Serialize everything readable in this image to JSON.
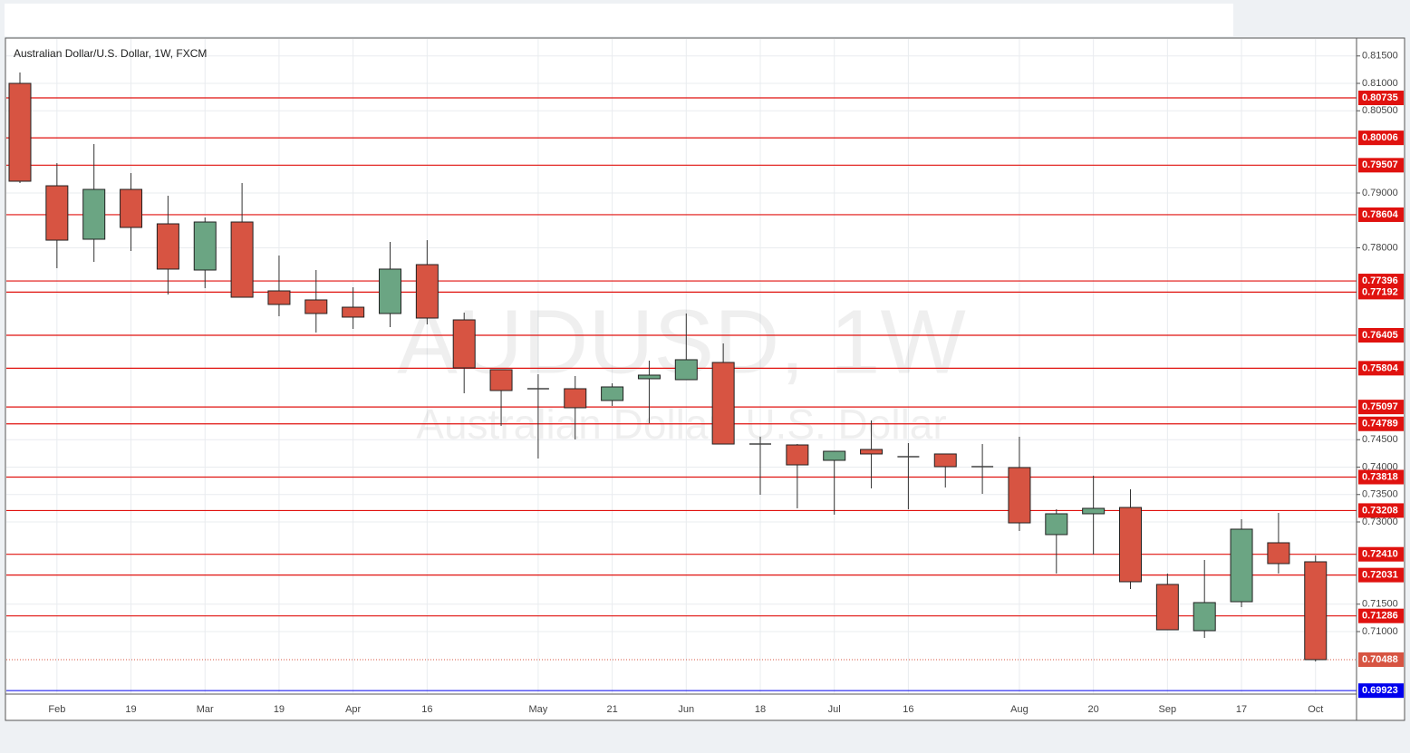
{
  "chart_data": {
    "type": "candlestick",
    "title": "Australian Dollar/U.S. Dollar, 1W, FXCM",
    "watermark_symbol": "AUDUSD, 1W",
    "watermark_name": "Australian Dollar/ U.S. Dollar",
    "categories": [
      null,
      "Feb",
      null,
      "19",
      null,
      "Mar",
      null,
      "19",
      null,
      "Apr",
      null,
      "16",
      null,
      null,
      "May",
      null,
      "21",
      null,
      "Jun",
      null,
      "18",
      null,
      "Jul",
      null,
      "16",
      null,
      null,
      "Aug",
      null,
      "20",
      null,
      "Sep",
      null,
      "17",
      null,
      "Oct"
    ],
    "open": [
      0.81,
      0.79132,
      0.78157,
      0.79066,
      0.78438,
      0.77595,
      0.78471,
      0.77215,
      0.7705,
      0.76917,
      0.76802,
      0.77694,
      0.76686,
      0.75777,
      0.7543,
      0.7543,
      0.75215,
      0.75612,
      0.75595,
      0.75909,
      0.74421,
      0.74405,
      0.74124,
      0.74322,
      0.7419,
      0.7424,
      0.74008,
      0.73992,
      0.72769,
      0.73149,
      0.73264,
      0.7186,
      0.71017,
      0.71545,
      0.7262,
      0.72273
    ],
    "high": [
      0.81198,
      0.79545,
      0.79893,
      0.79364,
      0.7895,
      0.78554,
      0.79182,
      0.7786,
      0.77595,
      0.77281,
      0.78107,
      0.7814,
      0.76818,
      0.75777,
      0.75694,
      0.75661,
      0.75529,
      0.75942,
      0.76802,
      0.76256,
      0.74554,
      0.74421,
      0.74289,
      0.74851,
      0.74438,
      0.7424,
      0.74421,
      0.74554,
      0.73231,
      0.73843,
      0.73595,
      0.72058,
      0.72306,
      0.7305,
      0.73165,
      0.72388
    ],
    "low": [
      0.79182,
      0.77628,
      0.77744,
      0.77942,
      0.77149,
      0.77264,
      0.77099,
      0.76752,
      0.76455,
      0.76521,
      0.76554,
      0.76603,
      0.75347,
      0.74752,
      0.74157,
      0.74504,
      0.75116,
      0.74802,
      0.75595,
      0.74421,
      0.73496,
      0.73248,
      0.73132,
      0.73612,
      0.73231,
      0.73628,
      0.73512,
      0.72835,
      0.72058,
      0.72405,
      0.71777,
      0.71033,
      0.70884,
      0.71446,
      0.72058,
      0.70455
    ],
    "close": [
      0.79215,
      0.7814,
      0.79066,
      0.78372,
      0.77612,
      0.78471,
      0.77099,
      0.76967,
      0.76802,
      0.76736,
      0.77612,
      0.76719,
      0.7581,
      0.75397,
      0.7543,
      0.75083,
      0.75463,
      0.75678,
      0.75959,
      0.74421,
      0.74421,
      0.74041,
      0.74289,
      0.7424,
      0.7419,
      0.74008,
      0.74008,
      0.72983,
      0.73149,
      0.73248,
      0.71909,
      0.71033,
      0.71529,
      0.72868,
      0.7224,
      0.70488
    ],
    "up_color": "#6ba583",
    "down_color": "#d75442",
    "doji_color": "#444444",
    "ylim": [
      0.69876,
      0.8181
    ],
    "yticks": [
      {
        "value": 0.815,
        "label": "0.81500"
      },
      {
        "value": 0.81,
        "label": "0.81000"
      },
      {
        "value": 0.805,
        "label": "0.80500"
      },
      {
        "value": 0.79,
        "label": "0.79000"
      },
      {
        "value": 0.78,
        "label": "0.78000"
      },
      {
        "value": 0.745,
        "label": "0.74500"
      },
      {
        "value": 0.74,
        "label": "0.74000"
      },
      {
        "value": 0.735,
        "label": "0.73500"
      },
      {
        "value": 0.73,
        "label": "0.73000"
      },
      {
        "value": 0.715,
        "label": "0.71500"
      },
      {
        "value": 0.71,
        "label": "0.71000"
      }
    ],
    "grid": true,
    "level_color": "#e0120f",
    "levels": [
      {
        "value": 0.80735,
        "label": "0.80735"
      },
      {
        "value": 0.80006,
        "label": "0.80006"
      },
      {
        "value": 0.79507,
        "label": "0.79507"
      },
      {
        "value": 0.78604,
        "label": "0.78604"
      },
      {
        "value": 0.77396,
        "label": "0.77396"
      },
      {
        "value": 0.77192,
        "label": "0.77192"
      },
      {
        "value": 0.76405,
        "label": "0.76405"
      },
      {
        "value": 0.75804,
        "label": "0.75804"
      },
      {
        "value": 0.75097,
        "label": "0.75097"
      },
      {
        "value": 0.74789,
        "label": "0.74789"
      },
      {
        "value": 0.73818,
        "label": "0.73818"
      },
      {
        "value": 0.73208,
        "label": "0.73208"
      },
      {
        "value": 0.7241,
        "label": "0.72410"
      },
      {
        "value": 0.72031,
        "label": "0.72031"
      },
      {
        "value": 0.71286,
        "label": "0.71286"
      }
    ],
    "last_price": {
      "value": 0.70488,
      "label": "0.70488"
    },
    "last_price_color": "#d75442",
    "marker_line": {
      "value": 0.69923,
      "label": "0.69923"
    },
    "marker_color": "#0000ee"
  }
}
